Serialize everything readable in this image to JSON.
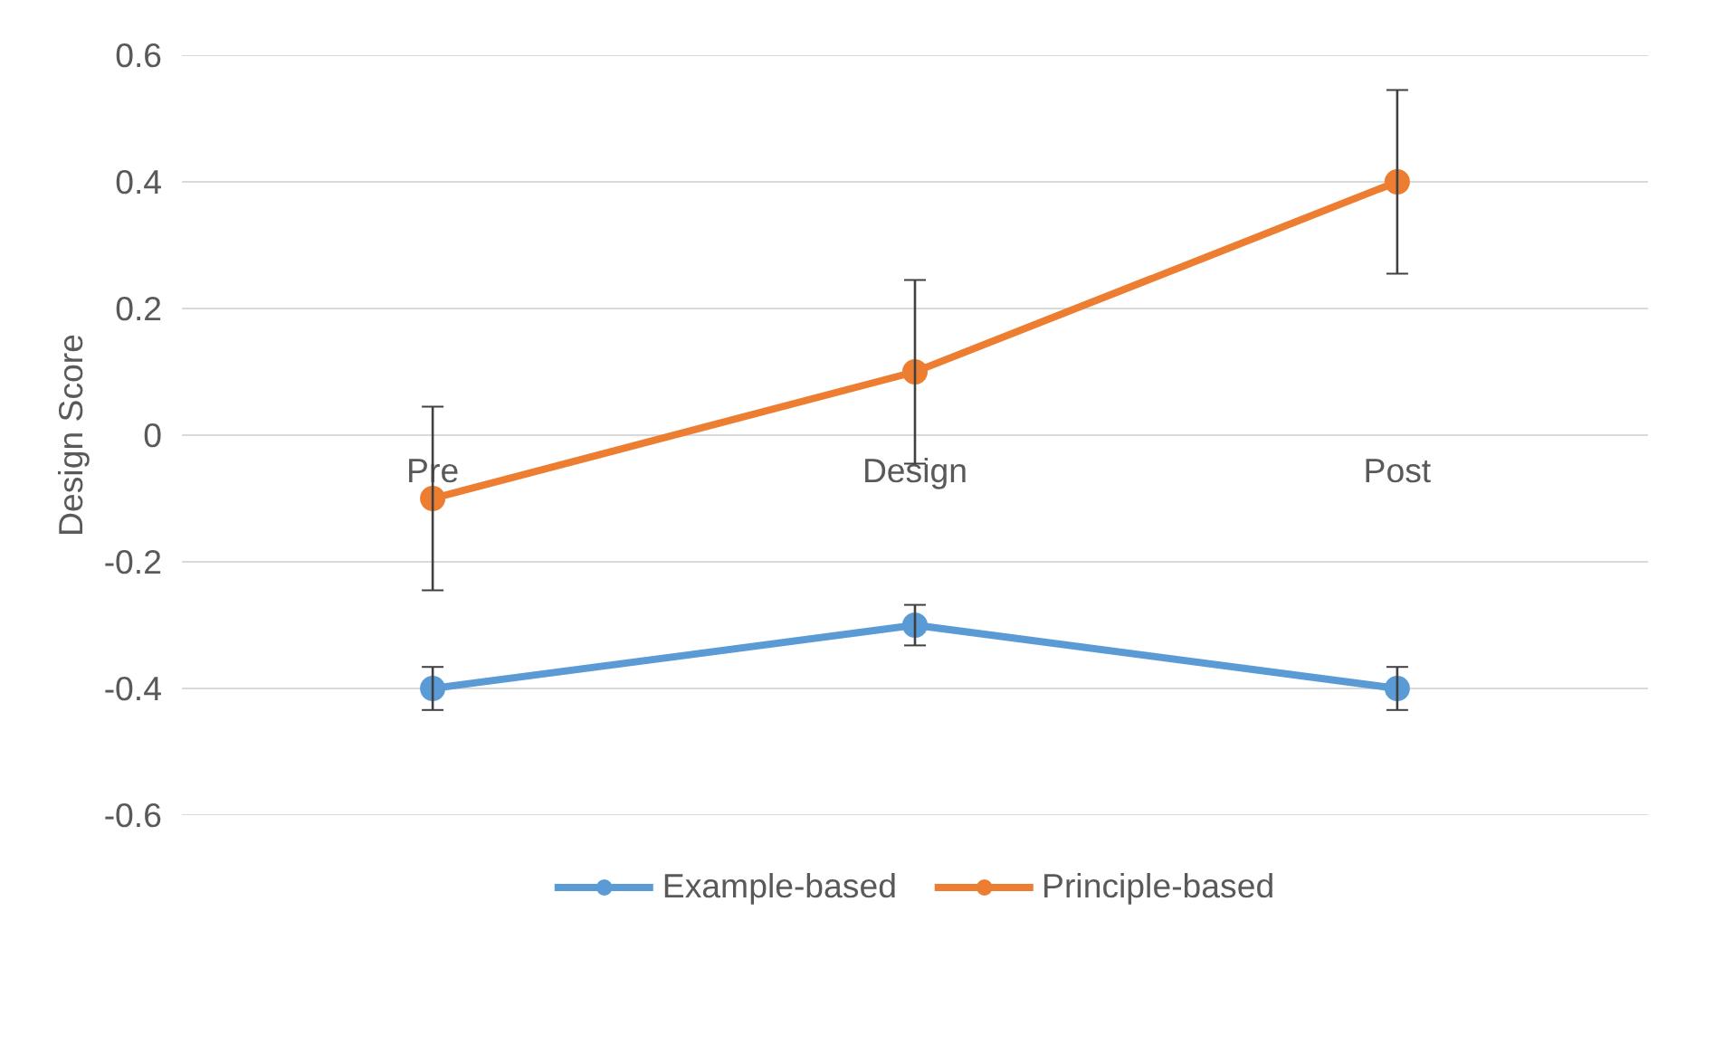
{
  "chart_data": {
    "type": "line",
    "ylabel": "Design Score",
    "categories": [
      "Pre",
      "Design",
      "Post"
    ],
    "series": [
      {
        "name": "Example-based",
        "color": "#5b9bd5",
        "values": [
          -0.4,
          -0.3,
          -0.4
        ],
        "errors": [
          0.034,
          0.032,
          0.034
        ]
      },
      {
        "name": "Principle-based",
        "color": "#ed7d31",
        "values": [
          -0.1,
          0.1,
          0.4
        ],
        "errors": [
          0.145,
          0.145,
          0.145
        ]
      }
    ],
    "ylim": [
      -0.6,
      0.6
    ],
    "yticks": [
      -0.6,
      -0.4,
      -0.2,
      0,
      0.2,
      0.4,
      0.6
    ],
    "grid": "y",
    "legend": "bottom",
    "marker": "circle",
    "line_style": "solid"
  }
}
